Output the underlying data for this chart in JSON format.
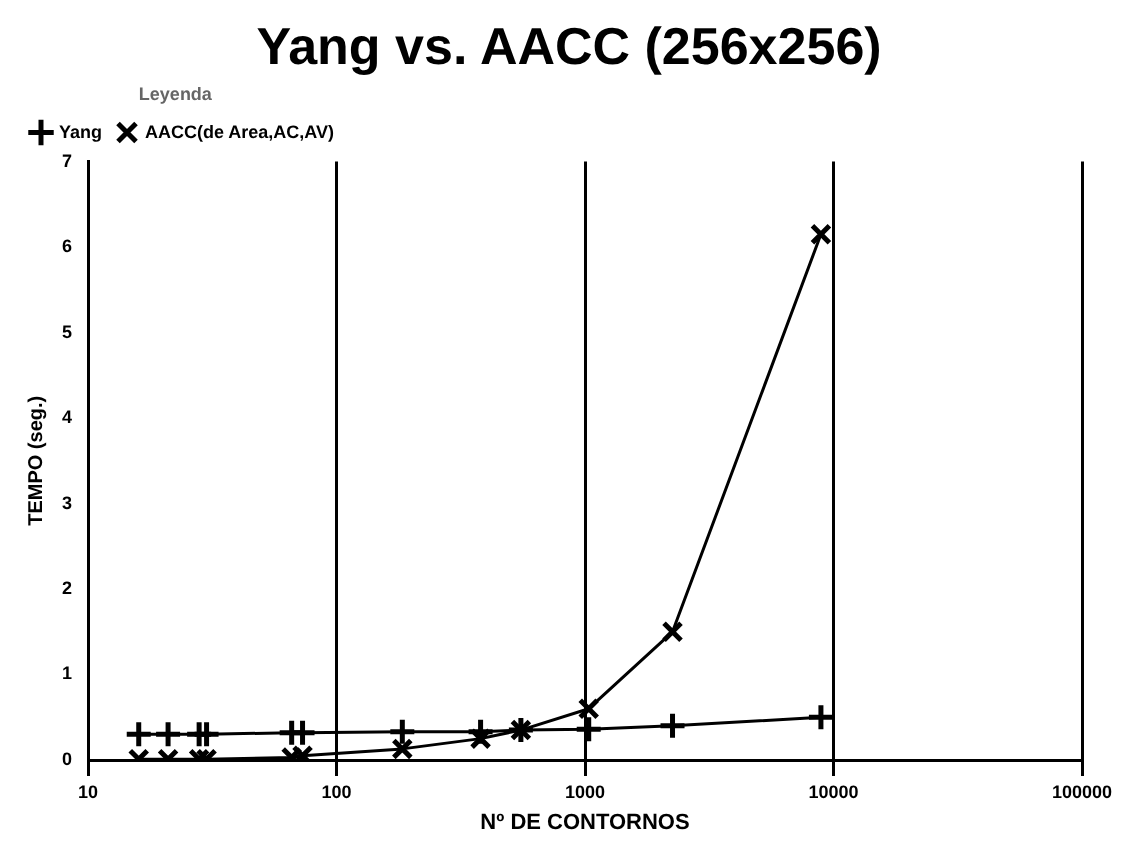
{
  "chart_data": {
    "type": "line",
    "title": "Yang vs. AACC (256x256)",
    "xlabel": "Nº DE CONTORNOS",
    "ylabel": "TEMPO (seg.)",
    "legend_title": "Leyenda",
    "x": [
      16,
      21,
      28,
      30,
      66,
      73,
      184,
      380,
      552,
      1035,
      2250,
      8900
    ],
    "series": [
      {
        "name": "Yang",
        "color": "#000000",
        "marker": "cross",
        "values": [
          0.3,
          0.3,
          0.3,
          0.3,
          0.32,
          0.32,
          0.33,
          0.33,
          0.35,
          0.36,
          0.4,
          0.5
        ]
      },
      {
        "name": "AACC(de Area,AC,AV)",
        "color": "#000000",
        "marker": "cross",
        "values": [
          0.01,
          0.01,
          0.01,
          0.01,
          0.03,
          0.05,
          0.13,
          0.25,
          0.35,
          0.6,
          1.5,
          6.15
        ]
      }
    ],
    "log": "x",
    "xlim": [
      10,
      100000
    ],
    "xticks": [
      10,
      100,
      1000,
      10000,
      100000
    ],
    "ylim": [
      0,
      7
    ],
    "yticks": [
      0,
      1,
      2,
      3,
      4,
      5,
      6,
      7
    ],
    "grid": "x",
    "legend": "top",
    "line_style": "solid"
  }
}
